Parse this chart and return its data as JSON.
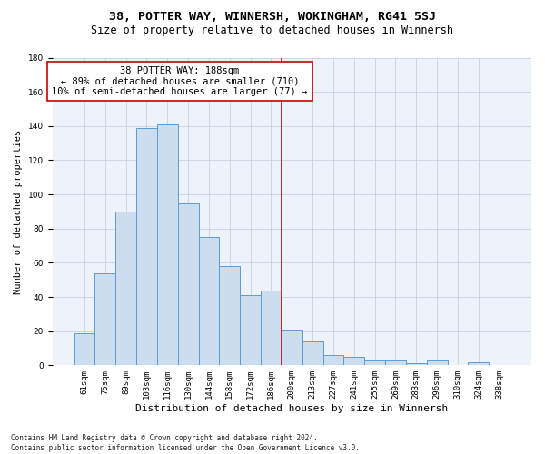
{
  "title1": "38, POTTER WAY, WINNERSH, WOKINGHAM, RG41 5SJ",
  "title2": "Size of property relative to detached houses in Winnersh",
  "xlabel": "Distribution of detached houses by size in Winnersh",
  "ylabel": "Number of detached properties",
  "footer": "Contains HM Land Registry data © Crown copyright and database right 2024.\nContains public sector information licensed under the Open Government Licence v3.0.",
  "bar_labels": [
    "61sqm",
    "75sqm",
    "89sqm",
    "103sqm",
    "116sqm",
    "130sqm",
    "144sqm",
    "158sqm",
    "172sqm",
    "186sqm",
    "200sqm",
    "213sqm",
    "227sqm",
    "241sqm",
    "255sqm",
    "269sqm",
    "283sqm",
    "296sqm",
    "310sqm",
    "324sqm",
    "338sqm"
  ],
  "bar_values": [
    19,
    54,
    90,
    139,
    141,
    95,
    75,
    58,
    41,
    44,
    21,
    14,
    6,
    5,
    3,
    3,
    1,
    3,
    0,
    2,
    0
  ],
  "bar_color": "#ccddf0",
  "bar_edge_color": "#5b9bd5",
  "vline_x": 9.5,
  "annotation_text": "38 POTTER WAY: 188sqm\n← 89% of detached houses are smaller (710)\n10% of semi-detached houses are larger (77) →",
  "annotation_box_color": "white",
  "annotation_box_edge_color": "#cc0000",
  "vline_color": "#cc0000",
  "ylim": [
    0,
    180
  ],
  "yticks": [
    0,
    20,
    40,
    60,
    80,
    100,
    120,
    140,
    160,
    180
  ],
  "bg_color": "#eef2fb",
  "grid_color": "#c8d0e0",
  "title1_fontsize": 9.5,
  "title2_fontsize": 8.5,
  "xlabel_fontsize": 8,
  "ylabel_fontsize": 7.5,
  "tick_fontsize": 6.5,
  "annotation_fontsize": 7.5,
  "footer_fontsize": 5.5
}
